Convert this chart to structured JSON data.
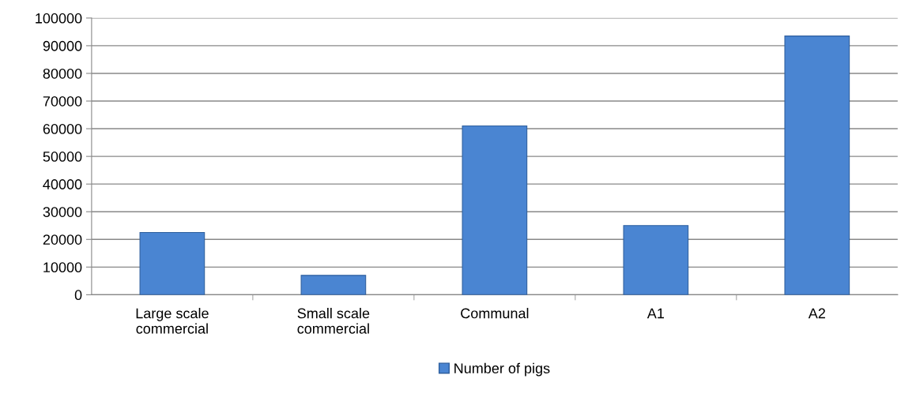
{
  "chart_data": {
    "type": "bar",
    "categories": [
      "Large scale\ncommercial",
      "Small scale\ncommercial",
      "Communal",
      "A1",
      "A2"
    ],
    "series": [
      {
        "name": "Number of pigs",
        "color": "#4a85d2",
        "values": [
          22500,
          7000,
          61000,
          25000,
          93500
        ]
      }
    ],
    "ylim": [
      0,
      100000
    ],
    "yticks": [
      0,
      10000,
      20000,
      30000,
      40000,
      50000,
      60000,
      70000,
      80000,
      90000,
      100000
    ],
    "grid": "y",
    "legend": "bottom"
  }
}
